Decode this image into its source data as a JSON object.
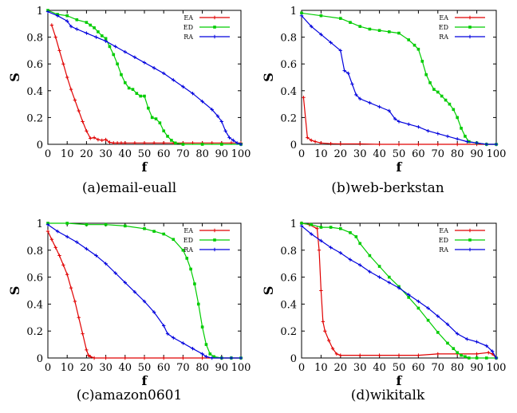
{
  "chart_data": [
    {
      "type": "line",
      "caption": "(a)email-euall",
      "xlabel": "f",
      "ylabel": "S",
      "xlim": [
        0,
        100
      ],
      "ylim": [
        0,
        1
      ],
      "xticks": [
        "0",
        "10",
        "20",
        "30",
        "40",
        "50",
        "60",
        "70",
        "80",
        "90",
        "100"
      ],
      "yticks": [
        "0",
        "0.2",
        "0.4",
        "0.6",
        "0.8",
        "1"
      ],
      "legend_position": "top-right",
      "series": [
        {
          "name": "EA",
          "color": "#e00000",
          "marker": "plus",
          "x": [
            2,
            4,
            6,
            8,
            10,
            12,
            14,
            16,
            18,
            20,
            22,
            24,
            26,
            28,
            30,
            32,
            34,
            36,
            38,
            40,
            45,
            50,
            55,
            60,
            65,
            70,
            75,
            80,
            85,
            90,
            95,
            100
          ],
          "y": [
            0.89,
            0.8,
            0.7,
            0.6,
            0.5,
            0.41,
            0.33,
            0.25,
            0.17,
            0.1,
            0.045,
            0.05,
            0.035,
            0.03,
            0.035,
            0.015,
            0.01,
            0.01,
            0.01,
            0.01,
            0.01,
            0.01,
            0.01,
            0.01,
            0.01,
            0.01,
            0.01,
            0.01,
            0.01,
            0.01,
            0.01,
            0.01
          ]
        },
        {
          "name": "ED",
          "color": "#00cc00",
          "marker": "square",
          "x": [
            0,
            5,
            10,
            15,
            20,
            22,
            24,
            26,
            28,
            30,
            32,
            34,
            36,
            38,
            40,
            42,
            44,
            46,
            48,
            50,
            52,
            54,
            56,
            58,
            60,
            62,
            64,
            66,
            70,
            80,
            90,
            100
          ],
          "y": [
            1.0,
            0.97,
            0.96,
            0.93,
            0.91,
            0.89,
            0.87,
            0.84,
            0.81,
            0.79,
            0.73,
            0.67,
            0.6,
            0.52,
            0.46,
            0.42,
            0.41,
            0.38,
            0.36,
            0.36,
            0.27,
            0.2,
            0.19,
            0.16,
            0.1,
            0.06,
            0.03,
            0.01,
            0.0,
            0.0,
            0.0,
            0.0
          ]
        },
        {
          "name": "RA",
          "color": "#0000dd",
          "marker": "plus",
          "x": [
            0,
            5,
            10,
            12,
            15,
            20,
            25,
            30,
            35,
            40,
            45,
            50,
            55,
            60,
            65,
            70,
            75,
            80,
            85,
            88,
            90,
            92,
            94,
            96,
            98,
            100
          ],
          "y": [
            0.99,
            0.96,
            0.92,
            0.88,
            0.86,
            0.83,
            0.8,
            0.77,
            0.73,
            0.69,
            0.65,
            0.61,
            0.57,
            0.53,
            0.48,
            0.43,
            0.38,
            0.32,
            0.26,
            0.21,
            0.17,
            0.1,
            0.05,
            0.03,
            0.01,
            0.0
          ]
        }
      ]
    },
    {
      "type": "line",
      "caption": "(b)web-berkstan",
      "xlabel": "f",
      "ylabel": "S",
      "xlim": [
        0,
        100
      ],
      "ylim": [
        0,
        1
      ],
      "xticks": [
        "0",
        "10",
        "20",
        "30",
        "40",
        "50",
        "60",
        "70",
        "80",
        "90",
        "100"
      ],
      "yticks": [
        "0",
        "0.2",
        "0.4",
        "0.6",
        "0.8",
        "1"
      ],
      "legend_position": "top-right",
      "series": [
        {
          "name": "EA",
          "color": "#e00000",
          "marker": "plus",
          "x": [
            1,
            3,
            5,
            7,
            10,
            15,
            20,
            30,
            40,
            50,
            60,
            70,
            80,
            90,
            100
          ],
          "y": [
            0.35,
            0.05,
            0.03,
            0.02,
            0.01,
            0.005,
            0.003,
            0.003,
            0.0,
            0.0,
            0.0,
            0.0,
            0.0,
            0.0,
            0.0
          ]
        },
        {
          "name": "ED",
          "color": "#00cc00",
          "marker": "square",
          "x": [
            0,
            10,
            20,
            25,
            30,
            35,
            40,
            45,
            50,
            55,
            58,
            60,
            62,
            64,
            66,
            68,
            70,
            72,
            74,
            76,
            78,
            80,
            82,
            84,
            86,
            90,
            95,
            100
          ],
          "y": [
            0.98,
            0.96,
            0.94,
            0.91,
            0.88,
            0.86,
            0.85,
            0.84,
            0.83,
            0.78,
            0.74,
            0.71,
            0.62,
            0.52,
            0.46,
            0.41,
            0.39,
            0.36,
            0.33,
            0.3,
            0.26,
            0.2,
            0.12,
            0.06,
            0.02,
            0.01,
            0.0,
            0.0
          ]
        },
        {
          "name": "RA",
          "color": "#0000dd",
          "marker": "plus",
          "x": [
            0,
            5,
            10,
            15,
            20,
            22,
            24,
            26,
            28,
            30,
            35,
            40,
            45,
            48,
            50,
            55,
            60,
            65,
            70,
            75,
            80,
            85,
            90,
            95,
            100
          ],
          "y": [
            0.96,
            0.88,
            0.82,
            0.76,
            0.7,
            0.55,
            0.53,
            0.45,
            0.37,
            0.34,
            0.31,
            0.28,
            0.25,
            0.19,
            0.17,
            0.15,
            0.13,
            0.1,
            0.08,
            0.06,
            0.04,
            0.02,
            0.01,
            0.0,
            0.0
          ]
        }
      ]
    },
    {
      "type": "line",
      "caption": "(c)amazon0601",
      "xlabel": "f",
      "ylabel": "S",
      "xlim": [
        0,
        100
      ],
      "ylim": [
        0,
        1
      ],
      "xticks": [
        "0",
        "10",
        "20",
        "30",
        "40",
        "50",
        "60",
        "70",
        "80",
        "90",
        "100"
      ],
      "yticks": [
        "0",
        "0.2",
        "0.4",
        "0.6",
        "0.8",
        "1"
      ],
      "legend_position": "top-right",
      "series": [
        {
          "name": "EA",
          "color": "#e00000",
          "marker": "plus",
          "x": [
            0,
            2,
            4,
            6,
            8,
            10,
            12,
            14,
            16,
            18,
            20,
            21,
            22,
            24,
            30,
            40,
            50,
            60,
            70,
            80,
            90,
            100
          ],
          "y": [
            0.94,
            0.88,
            0.82,
            0.76,
            0.69,
            0.62,
            0.52,
            0.42,
            0.3,
            0.18,
            0.06,
            0.02,
            0.01,
            0.0,
            0.0,
            0.0,
            0.0,
            0.0,
            0.0,
            0.0,
            0.0,
            0.0
          ]
        },
        {
          "name": "ED",
          "color": "#00cc00",
          "marker": "square",
          "x": [
            0,
            10,
            20,
            30,
            40,
            50,
            55,
            60,
            65,
            70,
            72,
            74,
            76,
            78,
            80,
            82,
            84,
            86,
            90,
            95,
            100
          ],
          "y": [
            1.0,
            1.0,
            0.99,
            0.99,
            0.98,
            0.96,
            0.94,
            0.92,
            0.88,
            0.8,
            0.74,
            0.66,
            0.55,
            0.4,
            0.23,
            0.1,
            0.03,
            0.01,
            0.0,
            0.0,
            0.0
          ]
        },
        {
          "name": "RA",
          "color": "#0000dd",
          "marker": "plus",
          "x": [
            0,
            5,
            10,
            15,
            20,
            25,
            30,
            35,
            40,
            45,
            50,
            55,
            60,
            62,
            65,
            70,
            75,
            80,
            82,
            85,
            90,
            95,
            100
          ],
          "y": [
            0.99,
            0.94,
            0.9,
            0.86,
            0.81,
            0.76,
            0.7,
            0.63,
            0.56,
            0.49,
            0.42,
            0.34,
            0.24,
            0.18,
            0.15,
            0.11,
            0.07,
            0.03,
            0.01,
            0.0,
            0.0,
            0.0,
            0.0
          ]
        }
      ]
    },
    {
      "type": "line",
      "caption": "(d)wikitalk",
      "xlabel": "f",
      "ylabel": "S",
      "xlim": [
        0,
        100
      ],
      "ylim": [
        0,
        1
      ],
      "xticks": [
        "0",
        "10",
        "20",
        "30",
        "40",
        "50",
        "60",
        "70",
        "80",
        "90",
        "100"
      ],
      "yticks": [
        "0",
        "0.2",
        "0.4",
        "0.6",
        "0.8",
        "1"
      ],
      "legend_position": "top-right",
      "series": [
        {
          "name": "EA",
          "color": "#e00000",
          "marker": "plus",
          "x": [
            0,
            4,
            8,
            9,
            10,
            11,
            12,
            14,
            16,
            18,
            20,
            30,
            40,
            50,
            60,
            70,
            80,
            90,
            96,
            98,
            100
          ],
          "y": [
            1.0,
            0.99,
            0.96,
            0.8,
            0.5,
            0.27,
            0.2,
            0.13,
            0.07,
            0.03,
            0.02,
            0.02,
            0.02,
            0.02,
            0.02,
            0.03,
            0.03,
            0.03,
            0.04,
            0.03,
            0.0
          ]
        },
        {
          "name": "ED",
          "color": "#00cc00",
          "marker": "square",
          "x": [
            0,
            5,
            10,
            15,
            20,
            25,
            28,
            30,
            35,
            40,
            45,
            50,
            55,
            60,
            65,
            70,
            75,
            78,
            80,
            82,
            84,
            86,
            90,
            95,
            100
          ],
          "y": [
            1.0,
            0.99,
            0.97,
            0.97,
            0.96,
            0.93,
            0.9,
            0.85,
            0.76,
            0.68,
            0.6,
            0.53,
            0.45,
            0.37,
            0.28,
            0.19,
            0.11,
            0.07,
            0.04,
            0.02,
            0.01,
            0.0,
            0.0,
            0.0,
            0.0
          ]
        },
        {
          "name": "RA",
          "color": "#0000dd",
          "marker": "plus",
          "x": [
            0,
            5,
            10,
            15,
            20,
            25,
            30,
            35,
            40,
            45,
            50,
            55,
            60,
            65,
            70,
            75,
            80,
            85,
            90,
            95,
            98,
            100
          ],
          "y": [
            0.98,
            0.92,
            0.87,
            0.82,
            0.78,
            0.73,
            0.69,
            0.64,
            0.6,
            0.56,
            0.52,
            0.47,
            0.42,
            0.37,
            0.31,
            0.25,
            0.18,
            0.14,
            0.12,
            0.09,
            0.05,
            0.0
          ]
        }
      ]
    }
  ]
}
